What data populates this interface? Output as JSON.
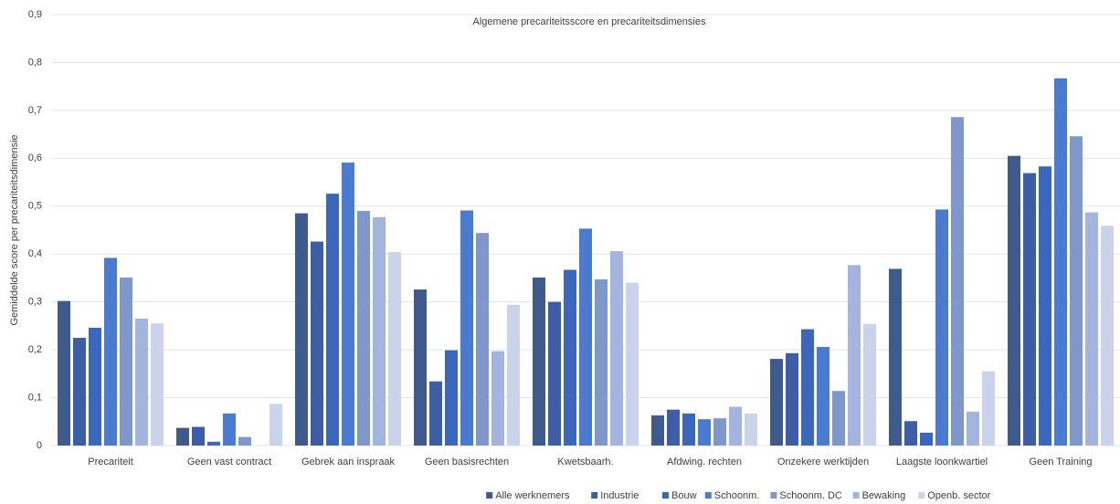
{
  "chart_data": {
    "type": "bar",
    "title": "Algemene precariteitsscore en precariteitsdimensies",
    "y_label": "Gemiddelde score per precariteitsdimensie",
    "categories": [
      "Precariteit",
      "Geen vast contract",
      "Gebrek aan inspraak",
      "Geen basisrechten",
      "Kwetsbaarh.",
      "Afdwing. rechten",
      "Onzekere werktijden",
      "Laagste loonkwartiel",
      "Geen Training"
    ],
    "series": [
      {
        "name": "Alle werknemers",
        "color": "#3f5a8c",
        "values": [
          0.302,
          0.037,
          0.485,
          0.326,
          0.351,
          0.063,
          0.181,
          0.369,
          0.605
        ]
      },
      {
        "name": "Industrie",
        "color": "#3d5ea6",
        "values": [
          0.225,
          0.039,
          0.426,
          0.134,
          0.3,
          0.075,
          0.193,
          0.051,
          0.569
        ]
      },
      {
        "name": "Bouw",
        "color": "#3a66bd",
        "values": [
          0.246,
          0.008,
          0.526,
          0.199,
          0.367,
          0.067,
          0.243,
          0.027,
          0.583
        ]
      },
      {
        "name": "Schoonm.",
        "color": "#4a7bd0",
        "values": [
          0.392,
          0.067,
          0.591,
          0.491,
          0.453,
          0.055,
          0.206,
          0.493,
          0.767
        ]
      },
      {
        "name": "Schoonm. DC",
        "color": "#7f98cc",
        "values": [
          0.351,
          0.018,
          0.49,
          0.444,
          0.347,
          0.057,
          0.114,
          0.686,
          0.646
        ]
      },
      {
        "name": "Bewaking",
        "color": "#a3b5de",
        "values": [
          0.265,
          null,
          0.477,
          0.197,
          0.406,
          0.081,
          0.377,
          0.071,
          0.487
        ]
      },
      {
        "name": "Openb. sector",
        "color": "#c9d3ec",
        "values": [
          0.255,
          0.087,
          0.404,
          0.294,
          0.34,
          0.067,
          0.254,
          0.155,
          0.459
        ]
      }
    ],
    "ylim": [
      0,
      0.9
    ],
    "yticks": [
      0,
      {
        "value": 0.1,
        "label": "0,1"
      },
      {
        "value": 0.2,
        "label": "0,2"
      },
      {
        "value": 0.3,
        "label": "0,3"
      },
      {
        "value": 0.4,
        "label": "0,4"
      },
      {
        "value": 0.5,
        "label": "0,5"
      },
      {
        "value": 0.6,
        "label": "0,6"
      },
      {
        "value": 0.7,
        "label": "0,7"
      },
      {
        "value": 0.8,
        "label": "0,8"
      },
      {
        "value": 0.9,
        "label": "0,9"
      }
    ],
    "grid": true,
    "legend": "bottom"
  }
}
